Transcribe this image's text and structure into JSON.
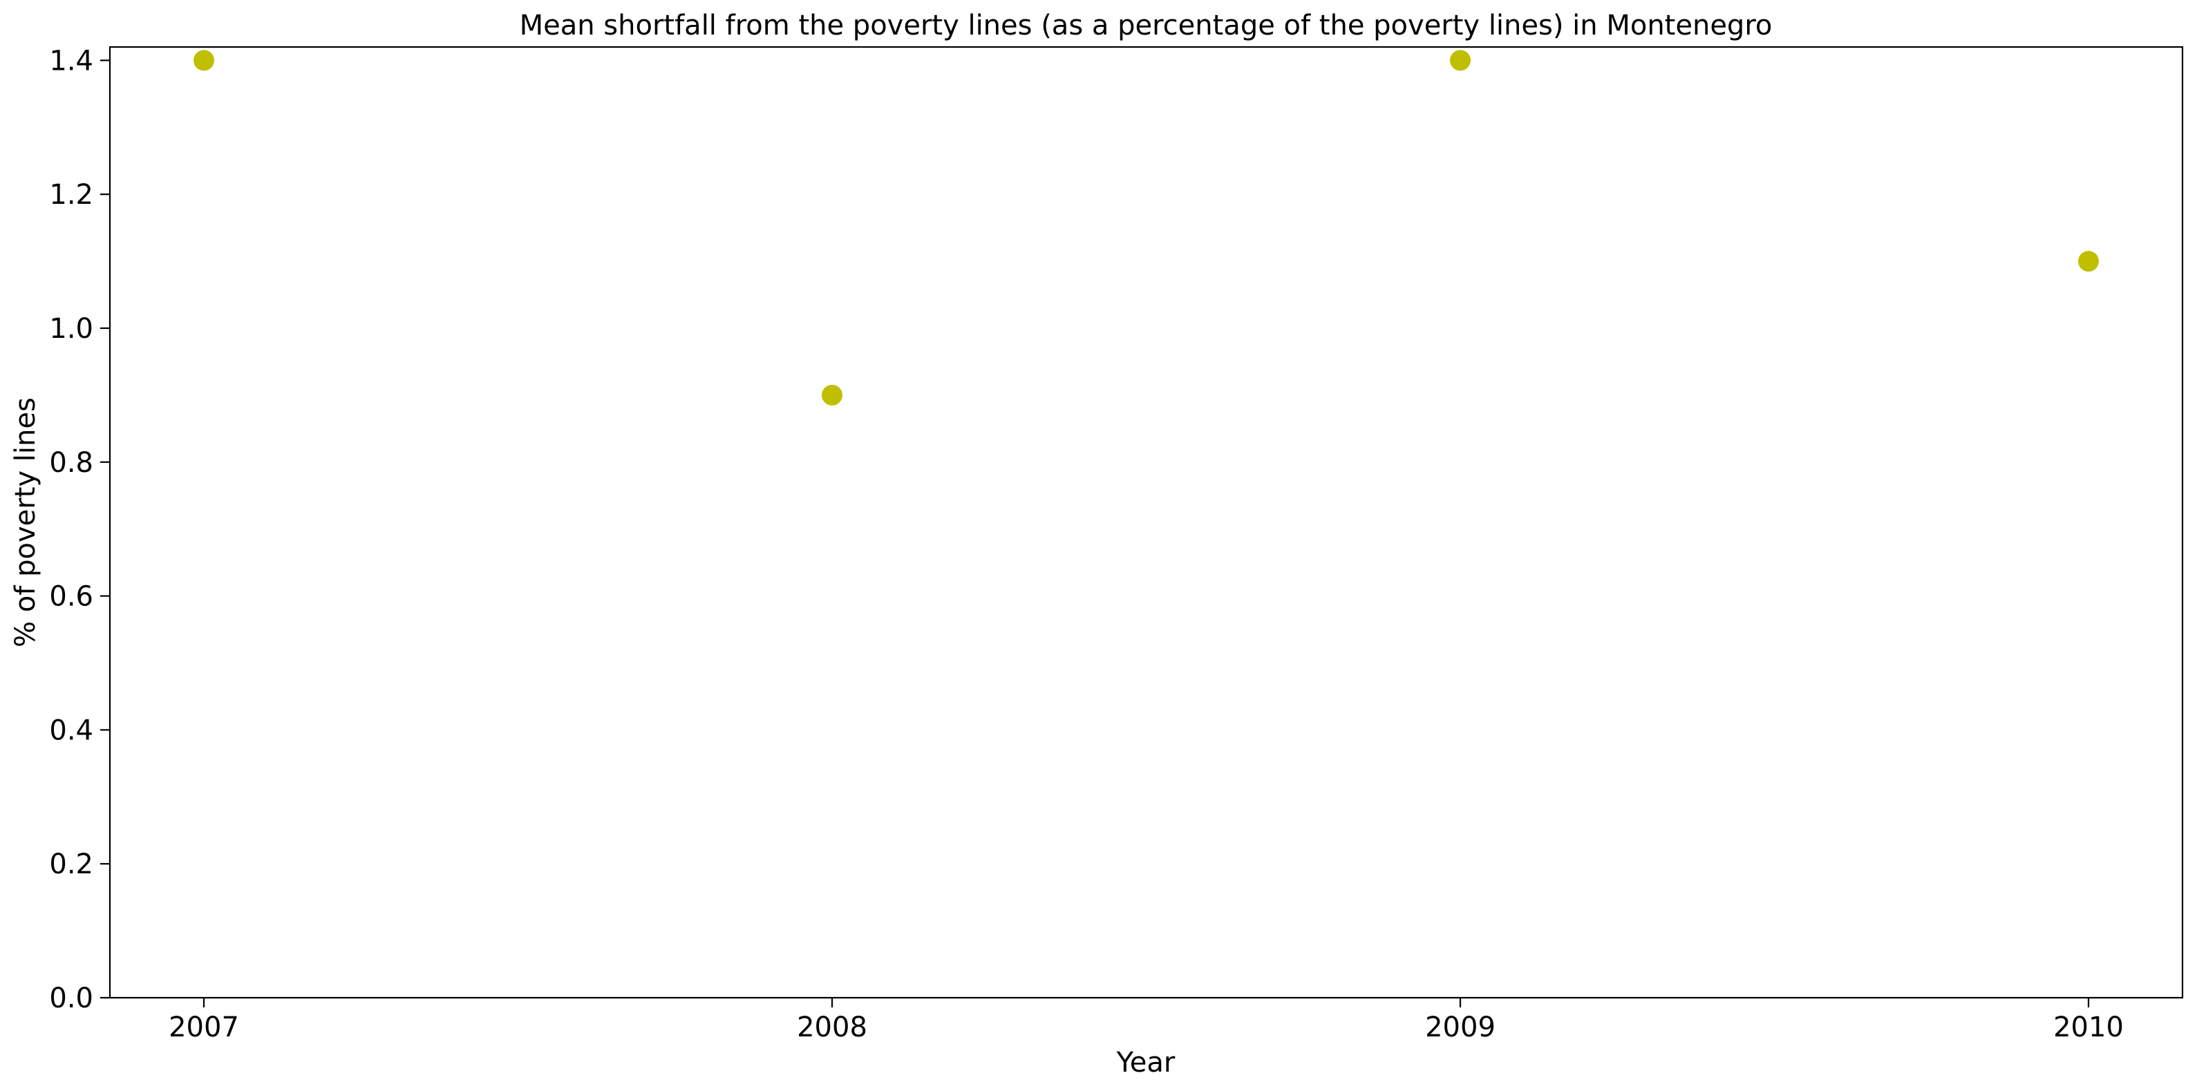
{
  "chart_data": {
    "type": "scatter",
    "title": "Mean shortfall from the poverty lines (as a percentage of the poverty lines) in Montenegro",
    "xlabel": "Year",
    "ylabel": "% of poverty lines",
    "x_ticks": [
      "2007",
      "2008",
      "2009",
      "2010"
    ],
    "y_ticks": [
      "0.0",
      "0.2",
      "0.4",
      "0.6",
      "0.8",
      "1.0",
      "1.2",
      "1.4"
    ],
    "ylim": [
      0,
      1.42
    ],
    "grid": false,
    "marker_color": "#bfbf00",
    "series": [
      {
        "x": [
          "2007",
          "2008",
          "2009",
          "2010"
        ],
        "values": [
          1.4,
          0.9,
          1.4,
          1.1
        ]
      }
    ]
  }
}
